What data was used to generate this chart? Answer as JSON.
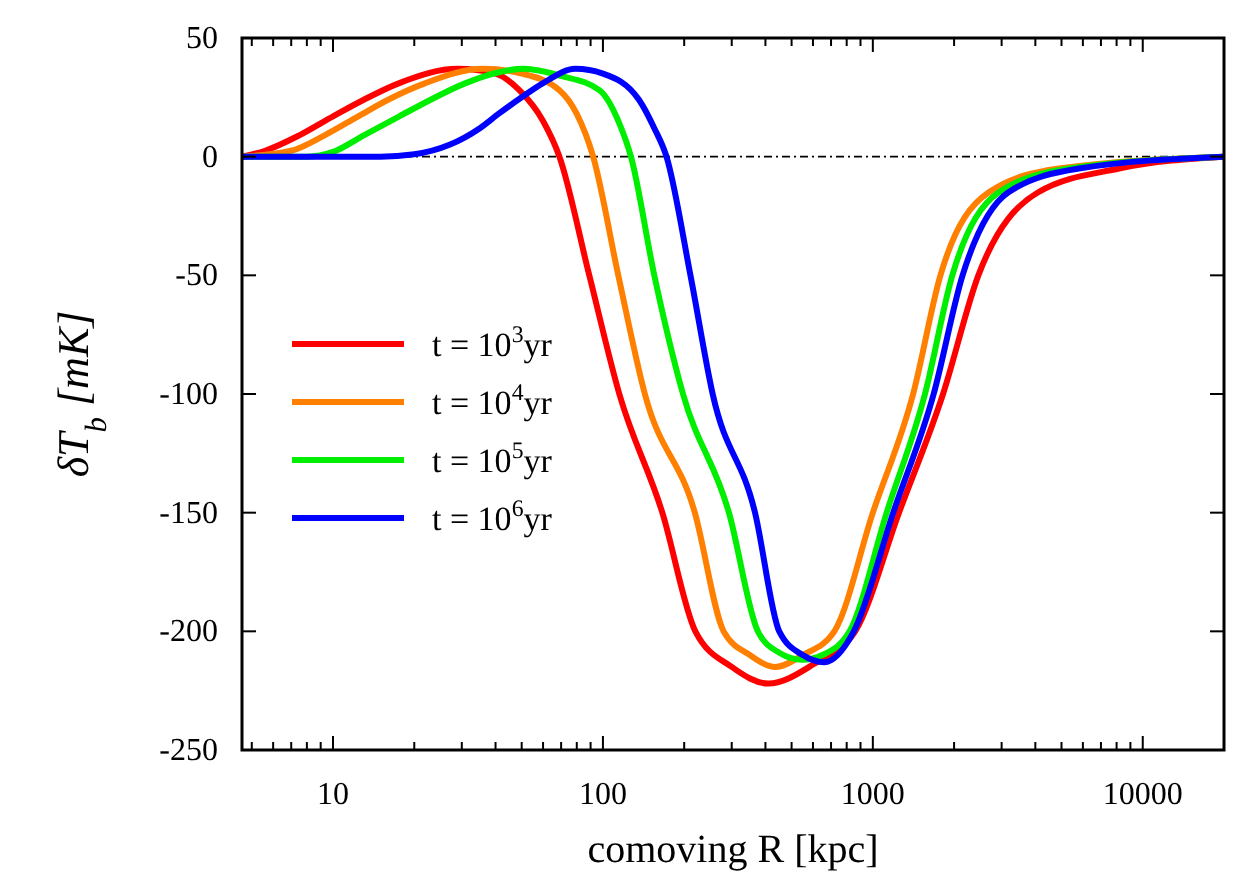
{
  "chart_data": {
    "type": "line",
    "xlabel": "comoving R [kpc]",
    "ylabel": "δT$_{b}$ [mK]",
    "log": "x",
    "xlim": [
      4.6,
      20000
    ],
    "ylim": [
      -250,
      50
    ],
    "xticks": [
      {
        "value": 5,
        "label": null
      },
      {
        "value": 6,
        "label": null
      },
      {
        "value": 7,
        "label": null
      },
      {
        "value": 8,
        "label": null
      },
      {
        "value": 9,
        "label": null
      },
      10,
      {
        "value": 20,
        "label": null
      },
      {
        "value": 30,
        "label": null
      },
      {
        "value": 40,
        "label": null
      },
      {
        "value": 50,
        "label": null
      },
      {
        "value": 60,
        "label": null
      },
      {
        "value": 70,
        "label": null
      },
      {
        "value": 80,
        "label": null
      },
      {
        "value": 90,
        "label": null
      },
      100,
      {
        "value": 200,
        "label": null
      },
      {
        "value": 300,
        "label": null
      },
      {
        "value": 400,
        "label": null
      },
      {
        "value": 500,
        "label": null
      },
      {
        "value": 600,
        "label": null
      },
      {
        "value": 700,
        "label": null
      },
      {
        "value": 800,
        "label": null
      },
      {
        "value": 900,
        "label": null
      },
      1000,
      {
        "value": 2000,
        "label": null
      },
      {
        "value": 3000,
        "label": null
      },
      {
        "value": 4000,
        "label": null
      },
      {
        "value": 5000,
        "label": null
      },
      {
        "value": 6000,
        "label": null
      },
      {
        "value": 7000,
        "label": null
      },
      {
        "value": 8000,
        "label": null
      },
      {
        "value": 9000,
        "label": null
      },
      10000
    ],
    "yticks": [
      -250,
      -200,
      -150,
      -100,
      -50,
      0,
      50
    ],
    "grid": false,
    "legend": "left",
    "line_style": "solid",
    "ref_lines": [
      {
        "axis": "y",
        "value": 0,
        "color": "#000000",
        "line_style": "dashdot"
      }
    ],
    "series": [
      {
        "name": "t = 10$^{3}$yr",
        "color": "#ff0000",
        "x": [
          4.6,
          5.6,
          7.5,
          10,
          13,
          17.6,
          29,
          40,
          49,
          60,
          69,
          89,
          115,
          166,
          220,
          300,
          410,
          600,
          860,
          1250,
          1820,
          2460,
          4100,
          8170,
          20000
        ],
        "values": [
          0,
          2.5,
          9,
          17,
          24,
          31,
          37,
          35,
          28,
          15,
          0,
          -50,
          -100,
          -150,
          -200,
          -215,
          -222,
          -214,
          -200,
          -150,
          -100,
          -50,
          -15,
          -5,
          0
        ]
      },
      {
        "name": "t = 10$^{4}$yr",
        "color": "#ff8000",
        "x": [
          4.6,
          7,
          9.3,
          12.4,
          16,
          22,
          36,
          50,
          69,
          80,
          92,
          114,
          143,
          219,
          280,
          350,
          435,
          550,
          720,
          1000,
          1410,
          1780,
          2690,
          4890,
          20000
        ],
        "values": [
          0,
          2.5,
          9,
          17,
          24,
          31,
          37,
          35,
          28,
          18,
          0,
          -50,
          -100,
          -150,
          -200,
          -210,
          -215,
          -210,
          -200,
          -150,
          -100,
          -50,
          -15,
          -5,
          0
        ]
      },
      {
        "name": "t = 10$^{5}$yr",
        "color": "#00ee00",
        "x": [
          4.6,
          8,
          10,
          13,
          17.6,
          23,
          31,
          51,
          70,
          97,
          115,
          127,
          155,
          198,
          293,
          375,
          450,
          550,
          650,
          820,
          1125,
          1560,
          1970,
          2930,
          5320,
          20000
        ],
        "values": [
          0,
          0,
          2,
          9,
          17,
          24,
          31,
          37,
          34,
          28,
          14,
          0,
          -50,
          -100,
          -150,
          -200,
          -209,
          -212,
          -210,
          -200,
          -150,
          -100,
          -50,
          -15,
          -5,
          0
        ]
      },
      {
        "name": "t = 10$^{6}$yr",
        "color": "#0000ff",
        "x": [
          4.6,
          15,
          20,
          27,
          35,
          41,
          50,
          60,
          79,
          100,
          136,
          155,
          172,
          211,
          255,
          366,
          450,
          550,
          660,
          850,
          1190,
          1680,
          2150,
          3180,
          5800,
          20000
        ],
        "values": [
          0,
          0,
          1,
          5,
          12,
          18,
          25,
          31,
          37,
          35,
          24,
          12,
          0,
          -50,
          -100,
          -150,
          -200,
          -210,
          -213,
          -200,
          -150,
          -100,
          -50,
          -15,
          -5,
          0
        ]
      }
    ]
  }
}
